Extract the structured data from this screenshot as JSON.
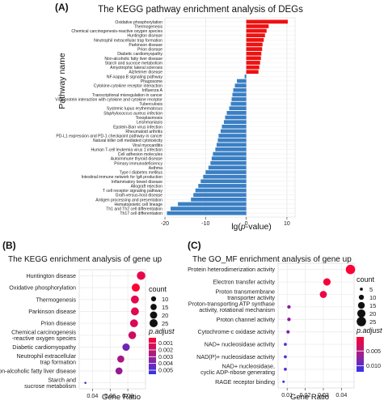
{
  "panels": {
    "A": "(A)",
    "B": "(B)",
    "C": "(C)"
  },
  "colors": {
    "up": "#ee1111",
    "down": "#3a7fc4",
    "grid": "#e6e6e6",
    "gradient_low": "#ff0033",
    "gradient_high": "#3333ee"
  },
  "chart_data": [
    {
      "type": "bar",
      "title": "The KEGG pathway enrichment analysis of DEGs",
      "xlabel": "lg(p-value)",
      "ylabel": "Pathway name",
      "xlim": [
        -20,
        12
      ],
      "xticks": [
        -20,
        -10,
        0,
        10
      ],
      "grid": true,
      "categories": [
        "Oxidative phosphorylation",
        "Thermogenesis",
        "Chemical carcinogenesis-reactive oxygen species",
        "Huntington disease",
        "Neutrophil extracellular trap formation",
        "Parkinson disease",
        "Prion disease",
        "Diabetic cardiomyopathy",
        "Non-alcoholic fatty liver disease",
        "Starch and sucrose metabolism",
        "Amyotrophic lateral sclerosis",
        "Alzheimer disease",
        "NF-kappa B signaling pathway",
        "Phagosome",
        "Cytokine-cytokine receptor interaction",
        "Influenza A",
        "Transcriptional misregulation in cancer",
        "Viral protein interaction with cytokine and cytokine receptor",
        "Tuberculosis",
        "Systemic lupus erythematosus",
        "Staphylococcus aureus infection",
        "Toxoplasmosis",
        "Leishmaniasis",
        "Epstein-Barr virus infection",
        "Rheumatoid arthritis",
        "PD-L1 expression and PD-1 checkpoint pathway in cancer",
        "Natural killer cell mediated cytotoxicity",
        "Viral myocarditis",
        "Human T-cell leukemia virus 1 infection",
        "Cell adhesion molecules",
        "Autoimmune thyroid disease",
        "Primary immunodeficiency",
        "Asthma",
        "Type I diabetes mellitus",
        "Intestinal immune network for IgA production",
        "Inflammatory bowel disease",
        "Allograft rejection",
        "T cell receptor signaling pathway",
        "Graft-versus-host disease",
        "Antigen processing and presentation",
        "Hematopoietic cell lineage",
        "Th1 and Th2 cell differentiation",
        "Th17 cell differentiation"
      ],
      "values": [
        10.2,
        5.5,
        5.0,
        4.6,
        4.3,
        4.0,
        3.9,
        3.7,
        3.6,
        3.4,
        3.2,
        3.0,
        -0.4,
        -2.3,
        -2.8,
        -3.2,
        -3.4,
        -3.6,
        -3.8,
        -4.2,
        -4.8,
        -5.2,
        -5.5,
        -6.0,
        -6.3,
        -6.8,
        -7.0,
        -7.3,
        -7.6,
        -8.2,
        -8.5,
        -8.8,
        -9.3,
        -10.0,
        -10.6,
        -11.2,
        -11.8,
        -12.5,
        -13.0,
        -13.6,
        -16.8,
        -18.6,
        -19.5
      ]
    },
    {
      "type": "scatter",
      "title": "The KEGG enrichment analysis of gene up",
      "xlabel": "Gene Ratio",
      "xlim": [
        0.025,
        0.1
      ],
      "xticks": [
        "0.04",
        "0.06",
        "0.08"
      ],
      "categories": [
        "Huntington disease",
        "Oxidative phosphorylation",
        "Thermogenesis",
        "Parkinson disease",
        "Prion disease",
        "Chemical carcinogenesis\n-reactive oxygen species",
        "Diabetic cardiomyopathy",
        "Neutrophil extracellular\ntrap formation",
        "Non-alcoholic fatty liver disease",
        "Starch and\nsucrose metabolism"
      ],
      "x": [
        0.095,
        0.089,
        0.088,
        0.088,
        0.087,
        0.085,
        0.078,
        0.072,
        0.07,
        0.032
      ],
      "count": [
        27,
        25,
        24,
        24,
        24,
        23,
        21,
        19,
        19,
        2
      ],
      "p_adjust": [
        0.0008,
        0.0002,
        0.0009,
        0.001,
        0.0012,
        0.0015,
        0.004,
        0.0025,
        0.003,
        0.0045
      ],
      "legend": {
        "size_title": "count",
        "size_values": [
          10,
          15,
          20,
          25
        ],
        "color_title": "p.adjust",
        "color_ticks": [
          "0.001",
          "0.002",
          "0.003",
          "0.004",
          "0.005"
        ]
      }
    },
    {
      "type": "scatter",
      "title": "The GO_MF enrichment analysis of gene up",
      "xlabel": "Gene Ratio",
      "xlim": [
        0.005,
        0.047
      ],
      "xticks": [
        "0.01",
        "0.02",
        "0.03",
        "0.04"
      ],
      "categories": [
        "Protein heterodimerization activity",
        "Electron transfer activity",
        "Proton transmembrane\ntransporter activity",
        "Proton-transporting ATP synthase\nactivity, rotational mechanism",
        "Proton channel activity",
        "Cytochrome-c oxidase activity",
        "NAD+ nucleosidase activity",
        "NAD(P)+ nucleosidase activity",
        "NAD+ nucleosidase,\ncyclic ADP-ribose generating",
        "RAGE receptor binding"
      ],
      "x": [
        0.045,
        0.032,
        0.03,
        0.011,
        0.011,
        0.0105,
        0.009,
        0.009,
        0.009,
        0.008
      ],
      "count": [
        25,
        17,
        16,
        6,
        6,
        5.5,
        5,
        5,
        5,
        4
      ],
      "p_adjust": [
        0.0005,
        0.0008,
        0.0012,
        0.0068,
        0.0068,
        0.0082,
        0.0102,
        0.0102,
        0.0102,
        0.0112
      ],
      "legend": {
        "size_title": "count",
        "size_values": [
          5,
          10,
          15,
          20,
          25
        ],
        "color_title": "p.adjust",
        "color_ticks": [
          "0.005",
          "0.010"
        ]
      }
    }
  ]
}
